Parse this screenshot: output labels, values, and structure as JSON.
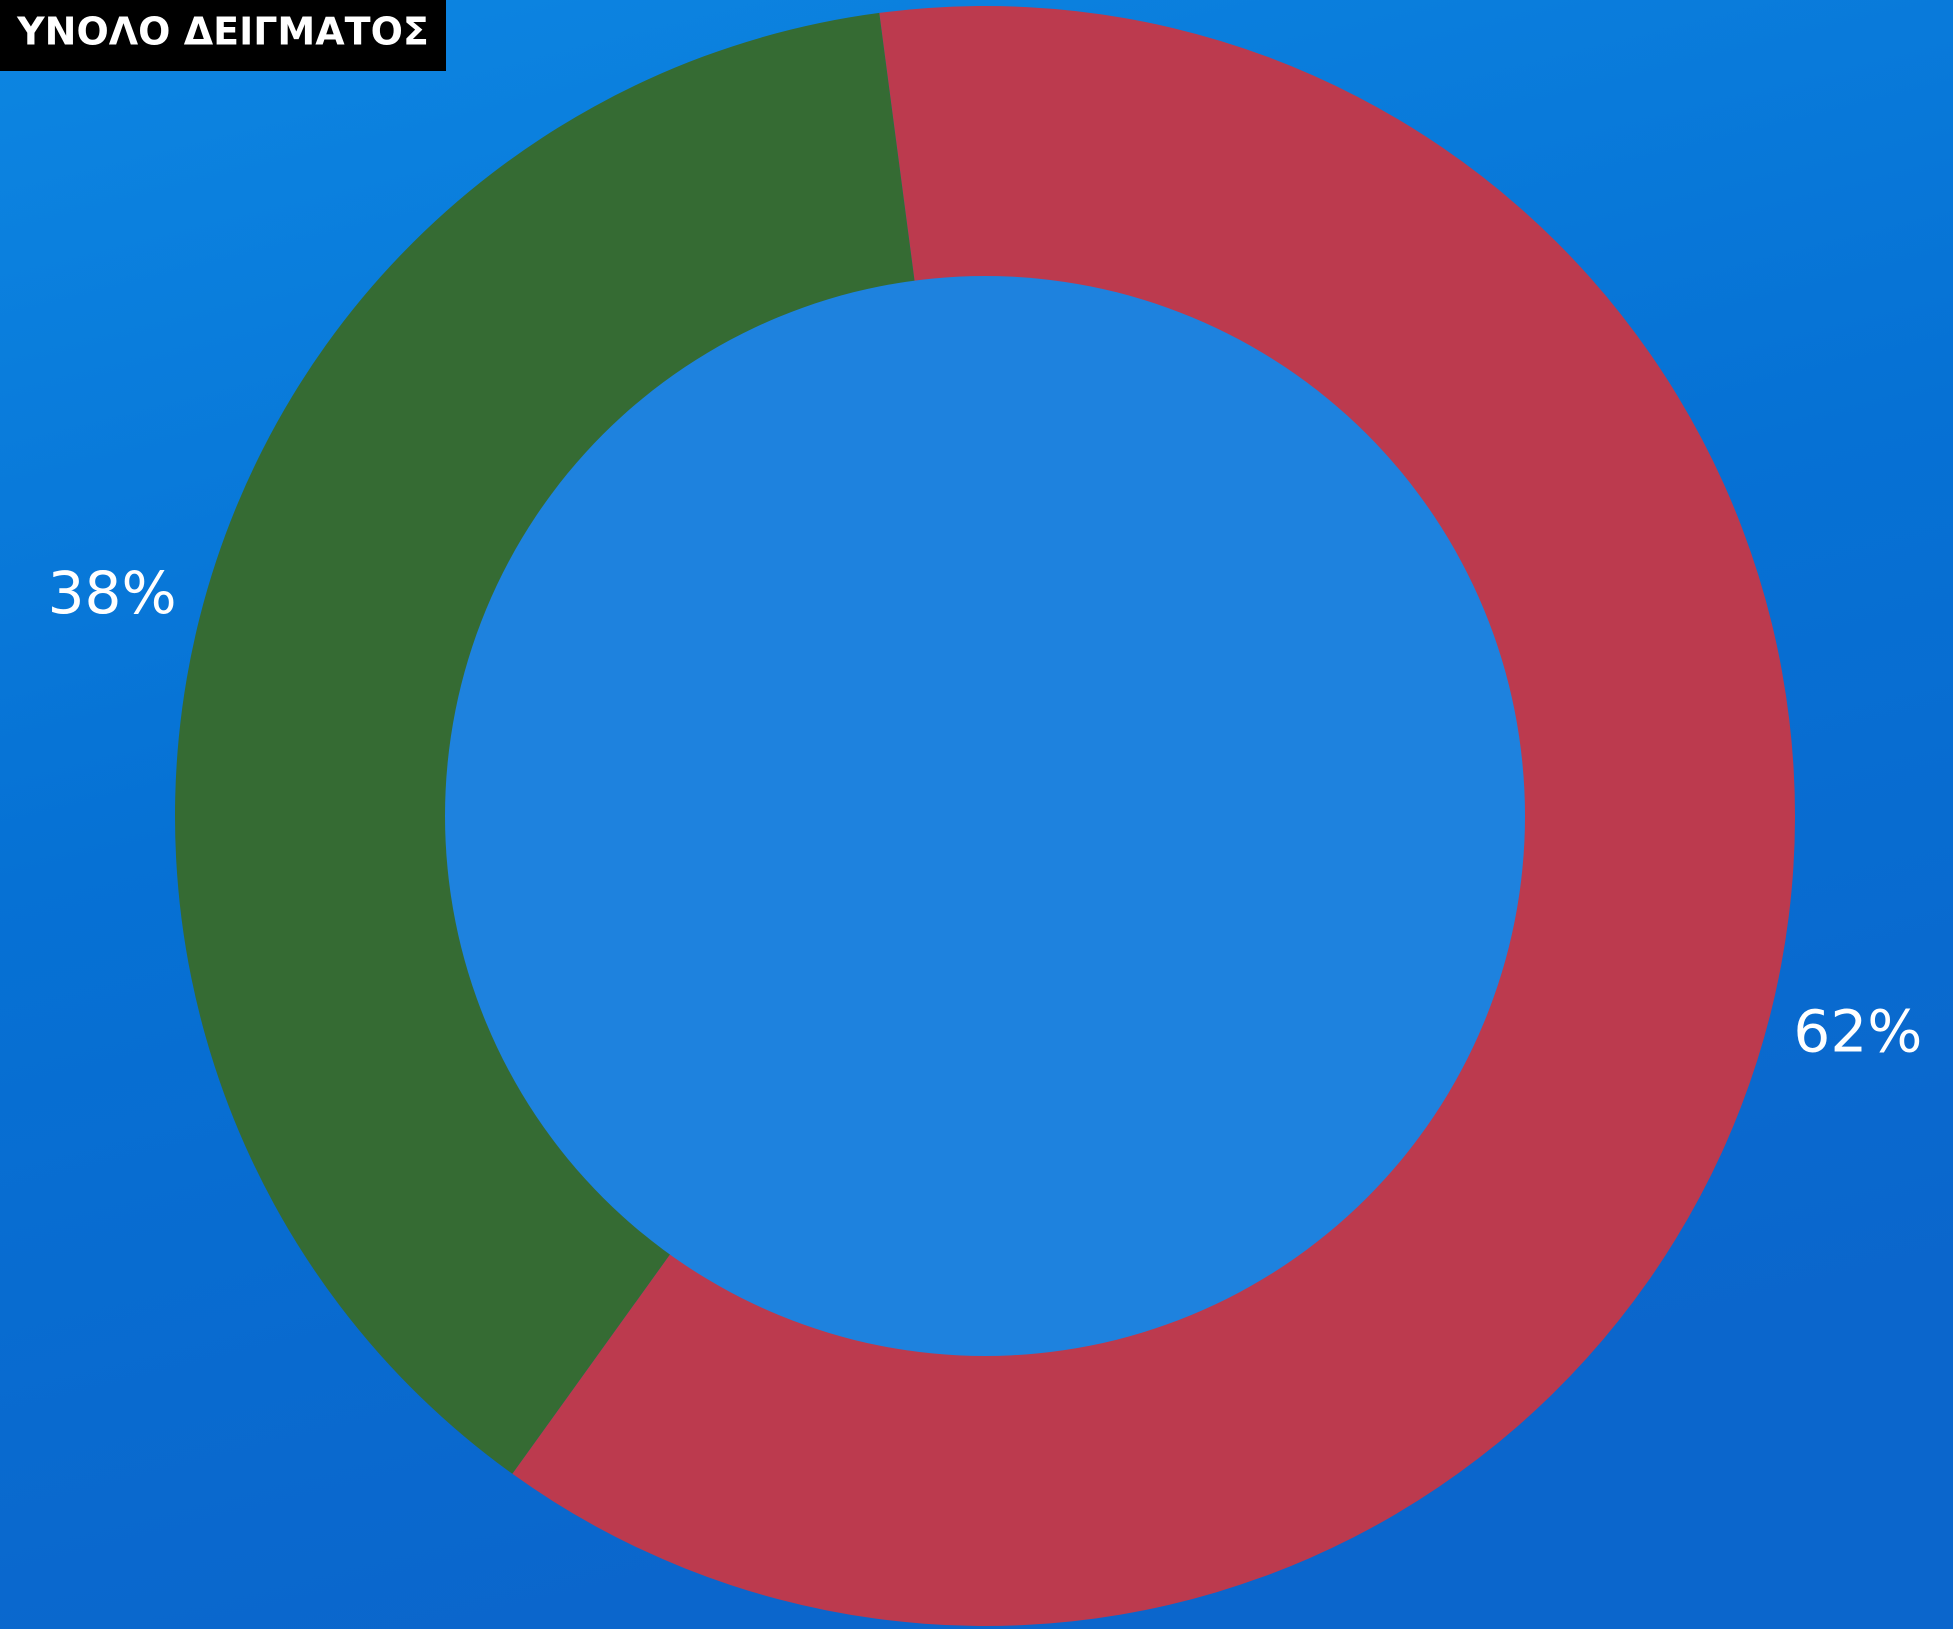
{
  "chart_data": {
    "type": "donut",
    "title": "ΥΝΟΛΟ ΔΕΙΓΜΑΤΟΣ",
    "values": [
      62,
      38
    ],
    "value_labels": [
      "62%",
      "38%"
    ],
    "colors": [
      "#bc3a4e",
      "#356b33"
    ]
  }
}
